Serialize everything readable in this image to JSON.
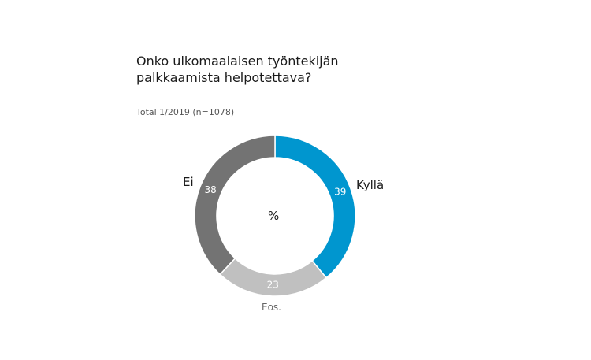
{
  "header": {
    "title": "Onko ulkomaalaisen työntekijän palkkaamista helpotettava?",
    "subtitle": "Total 1/2019 (n=1078)"
  },
  "chart_data": {
    "type": "pie",
    "donut": true,
    "center_label": "%",
    "title": "Onko ulkomaalaisen työntekijän palkkaamista helpotettava?",
    "subtitle": "Total 1/2019 (n=1078)",
    "slices": [
      {
        "name": "Kyllä",
        "value": 39,
        "color": "#0096cf"
      },
      {
        "name": "Eos.",
        "value": 23,
        "color": "#c0c0c0"
      },
      {
        "name": "Ei",
        "value": 38,
        "color": "#737373"
      }
    ]
  }
}
